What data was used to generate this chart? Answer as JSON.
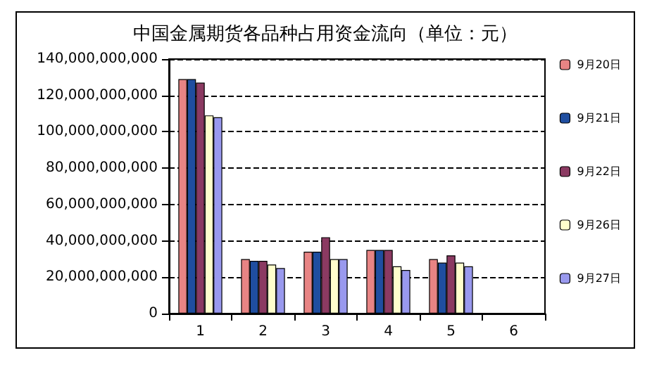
{
  "chart_data": {
    "type": "bar",
    "title": "中国金属期货各品种占用资金流向（单位：元）",
    "categories": [
      "1",
      "2",
      "3",
      "4",
      "5",
      "6"
    ],
    "series": [
      {
        "name": "9月20日",
        "color": "#e88484",
        "values": [
          129000000000,
          30000000000,
          34000000000,
          35000000000,
          30000000000,
          null
        ]
      },
      {
        "name": "9月21日",
        "color": "#1f4ea0",
        "values": [
          129000000000,
          29000000000,
          34000000000,
          35000000000,
          28000000000,
          null
        ]
      },
      {
        "name": "9月22日",
        "color": "#8b3a62",
        "values": [
          127000000000,
          29000000000,
          42000000000,
          35000000000,
          32000000000,
          null
        ]
      },
      {
        "name": "9月26日",
        "color": "#ffffcc",
        "values": [
          109000000000,
          27000000000,
          30000000000,
          26000000000,
          28000000000,
          null
        ]
      },
      {
        "name": "9月27日",
        "color": "#9999ee",
        "values": [
          108000000000,
          25000000000,
          30000000000,
          24000000000,
          26000000000,
          null
        ]
      }
    ],
    "ylim": [
      0,
      140000000000
    ],
    "yticks": [
      {
        "value": 0,
        "label": "0"
      },
      {
        "value": 20000000000,
        "label": "20,000,000,000"
      },
      {
        "value": 40000000000,
        "label": "40,000,000,000"
      },
      {
        "value": 60000000000,
        "label": "60,000,000,000"
      },
      {
        "value": 80000000000,
        "label": "80,000,000,000"
      },
      {
        "value": 100000000000,
        "label": "100,000,000,000"
      },
      {
        "value": 120000000000,
        "label": "120,000,000,000"
      },
      {
        "value": 140000000000,
        "label": "140,000,000,000"
      }
    ],
    "grid": "y",
    "legend": "right"
  }
}
